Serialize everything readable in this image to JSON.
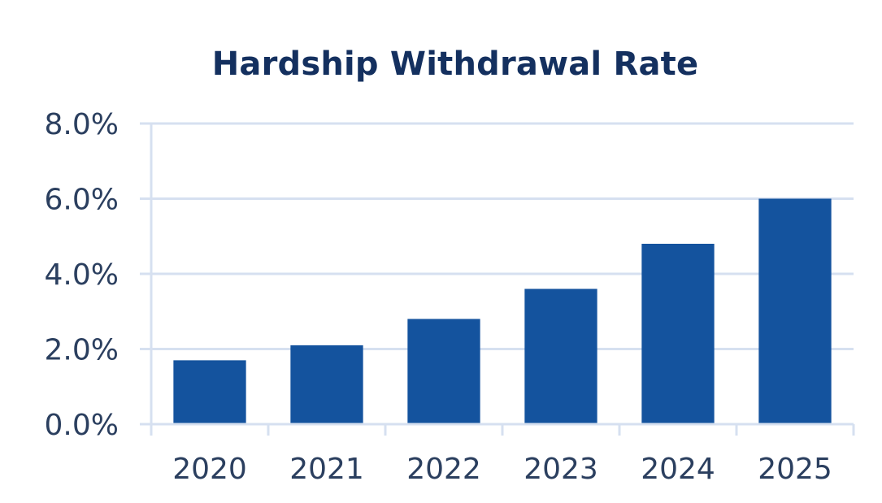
{
  "chart_data": {
    "type": "bar",
    "title": "Hardship Withdrawal Rate",
    "categories": [
      "2020",
      "2021",
      "2022",
      "2023",
      "2024",
      "2025"
    ],
    "values": [
      1.7,
      2.1,
      2.8,
      3.6,
      4.8,
      6.0
    ],
    "value_unit": "%",
    "xlabel": "",
    "ylabel": "",
    "ylim": [
      0,
      8
    ],
    "yticks": [
      0,
      2,
      4,
      6,
      8
    ],
    "ytick_labels": [
      "0.0%",
      "2.0%",
      "4.0%",
      "6.0%",
      "8.0%"
    ],
    "grid": true,
    "legend": "none",
    "colors": {
      "bar": "#14539e",
      "grid": "#d6e0f0",
      "title": "#14305f",
      "tick_text": "#2b3f5f"
    }
  }
}
